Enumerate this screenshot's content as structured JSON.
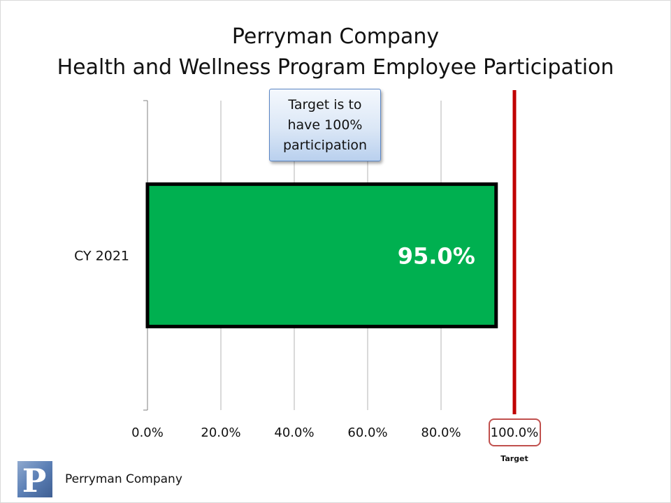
{
  "title": {
    "line1": "Perryman Company",
    "line2": "Health and Wellness Program Employee Participation"
  },
  "callout": {
    "text": "Target is to\nhave 100%\nparticipation"
  },
  "footer": {
    "company": "Perryman Company",
    "logo_icon": "perryman-p-logo-icon",
    "logo_letter": "P"
  },
  "colors": {
    "bar_fill": "#00b050",
    "bar_border": "#000000",
    "target_line": "#c00000",
    "target_label_border": "#c0504d",
    "gridline": "#b3b3b3",
    "logo_blue": "#4a6fa5"
  },
  "chart_data": {
    "type": "bar",
    "orientation": "horizontal",
    "categories": [
      "CY 2021"
    ],
    "values": [
      0.95
    ],
    "data_labels": [
      "95.0%"
    ],
    "xlim": [
      0,
      1
    ],
    "x_ticks": [
      0,
      0.2,
      0.4,
      0.6,
      0.8,
      1.0
    ],
    "x_tick_labels": [
      "0.0%",
      "20.0%",
      "40.0%",
      "60.0%",
      "80.0%",
      "100.0%"
    ],
    "target": {
      "value": 1.0,
      "label": "Target"
    },
    "grid": true,
    "legend": "none",
    "title": "Perryman Company Health and Wellness Program Employee Participation"
  }
}
